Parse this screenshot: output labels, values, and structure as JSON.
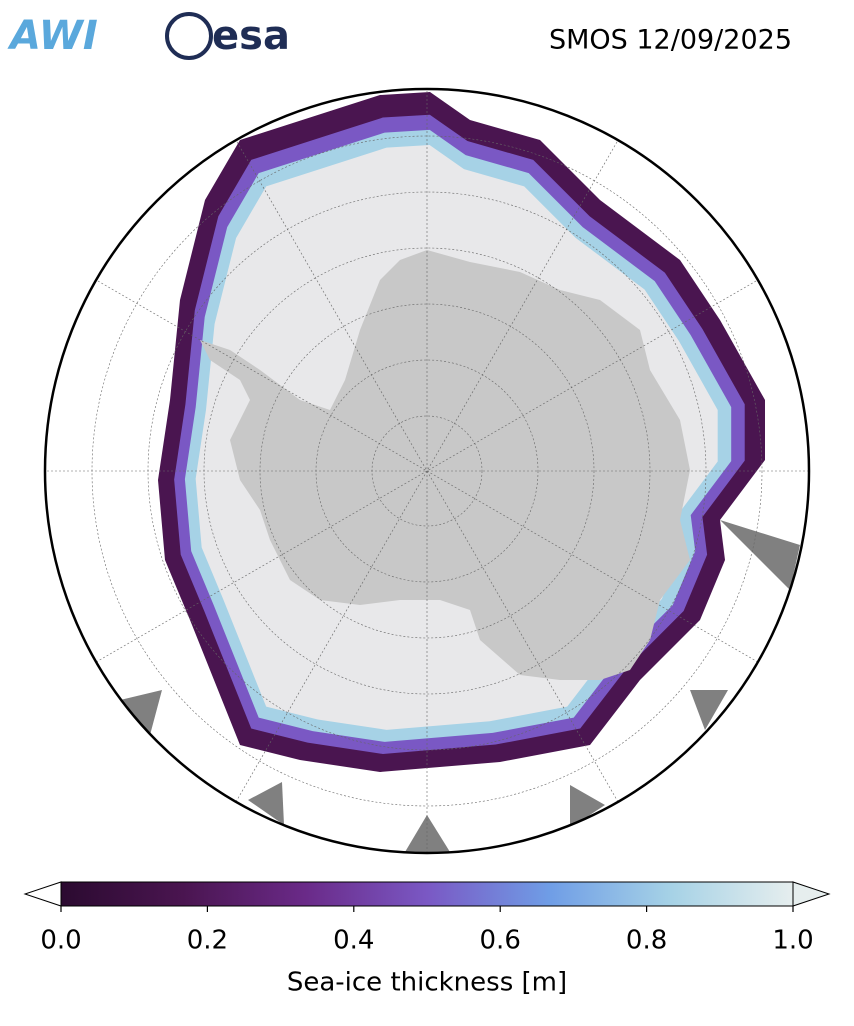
{
  "logos": [
    "AWI",
    "esa"
  ],
  "title": "SMOS 12/09/2025",
  "colorbar": {
    "label": "Sea-ice thickness [m]",
    "clim": [
      0,
      1
    ],
    "ticks": [
      {
        "value": 0,
        "label": "0.0"
      },
      0.2,
      0.4,
      0.6,
      0.8,
      {
        "value": 1,
        "label": "1.0"
      }
    ],
    "colors": [
      "#2b0a30",
      "#4a1550",
      "#6a2a88",
      "#7a58c4",
      "#6f9de6",
      "#a6d2e6",
      "#e6eeee"
    ]
  }
}
